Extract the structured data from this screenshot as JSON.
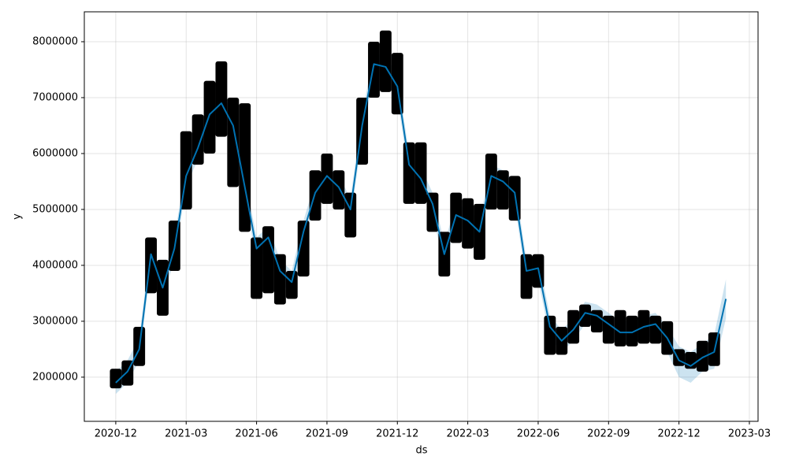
{
  "chart_data": {
    "type": "line",
    "xlabel": "ds",
    "ylabel": "y",
    "x": [
      0,
      0.5,
      1,
      1.5,
      2,
      2.5,
      3,
      3.5,
      4,
      4.5,
      5,
      5.5,
      6,
      6.5,
      7,
      7.5,
      8,
      8.5,
      9,
      9.5,
      10,
      10.5,
      11,
      11.5,
      12,
      12.5,
      13,
      13.5,
      14,
      14.5,
      15,
      15.5,
      16,
      16.5,
      17,
      17.5,
      18,
      18.5,
      19,
      19.5,
      20,
      20.5,
      21,
      21.5,
      22,
      22.5,
      23,
      23.5,
      24,
      24.5,
      25,
      25.5,
      26
    ],
    "series": [
      {
        "color": "#0072b2",
        "values": [
          1900000,
          2100000,
          2500000,
          4200000,
          3600000,
          4300000,
          5600000,
          6100000,
          6700000,
          6900000,
          6500000,
          5400000,
          4300000,
          4500000,
          3900000,
          3700000,
          4600000,
          5300000,
          5600000,
          5400000,
          5000000,
          6500000,
          7600000,
          7550000,
          7200000,
          5800000,
          5550000,
          5100000,
          4200000,
          4900000,
          4800000,
          4600000,
          5600000,
          5500000,
          5300000,
          3900000,
          3950000,
          2900000,
          2650000,
          2850000,
          3150000,
          3100000,
          2950000,
          2800000,
          2800000,
          2900000,
          2950000,
          2700000,
          2300000,
          2200000,
          2350000,
          2450000,
          3400000
        ]
      }
    ],
    "band": {
      "color": "#0072b2",
      "lower": [
        1700000,
        1900000,
        2300000,
        4000000,
        3400000,
        4100000,
        5400000,
        5900000,
        6500000,
        6700000,
        6300000,
        5200000,
        4100000,
        4300000,
        3700000,
        3500000,
        4400000,
        5100000,
        5400000,
        5200000,
        4800000,
        6300000,
        7400000,
        7350000,
        7000000,
        5600000,
        5350000,
        4900000,
        4000000,
        4700000,
        4600000,
        4400000,
        5400000,
        5300000,
        5100000,
        3700000,
        3750000,
        2700000,
        2450000,
        2650000,
        2950000,
        2900000,
        2750000,
        2600000,
        2600000,
        2700000,
        2750000,
        2450000,
        2000000,
        1900000,
        2100000,
        2150000,
        3050000
      ],
      "upper": [
        2100000,
        2300000,
        2700000,
        4400000,
        3800000,
        4500000,
        5800000,
        6300000,
        6900000,
        7100000,
        6700000,
        5600000,
        4500000,
        4700000,
        4100000,
        3900000,
        4800000,
        5500000,
        5800000,
        5600000,
        5200000,
        6700000,
        7800000,
        7750000,
        7400000,
        6000000,
        5750000,
        5300000,
        4400000,
        5100000,
        5000000,
        4800000,
        5800000,
        5700000,
        5500000,
        4100000,
        4150000,
        3100000,
        2850000,
        3050000,
        3350000,
        3300000,
        3150000,
        3000000,
        3000000,
        3100000,
        3150000,
        2900000,
        2550000,
        2450000,
        2600000,
        2750000,
        3750000
      ]
    },
    "observed": {
      "color": "#000000",
      "low": [
        1800000,
        1850000,
        2200000,
        3500000,
        3100000,
        3900000,
        5000000,
        5800000,
        6000000,
        6300000,
        5400000,
        4600000,
        3400000,
        3500000,
        3300000,
        3400000,
        3800000,
        4800000,
        5100000,
        5000000,
        4500000,
        5800000,
        7000000,
        7100000,
        6700000,
        5100000,
        5100000,
        4600000,
        3800000,
        4400000,
        4300000,
        4100000,
        5000000,
        5000000,
        4800000,
        3400000,
        3600000,
        2400000,
        2400000,
        2600000,
        2900000,
        2800000,
        2600000,
        2550000,
        2550000,
        2600000,
        2600000,
        2400000,
        2200000,
        2150000,
        2100000,
        2200000,
        null
      ],
      "high": [
        2150000,
        2300000,
        2900000,
        4500000,
        4100000,
        4800000,
        6400000,
        6700000,
        7300000,
        7650000,
        7000000,
        6900000,
        4500000,
        4700000,
        4200000,
        3900000,
        4800000,
        5700000,
        6000000,
        5700000,
        5300000,
        7000000,
        8000000,
        8200000,
        7800000,
        6200000,
        6200000,
        5300000,
        4600000,
        5300000,
        5200000,
        5100000,
        6000000,
        5700000,
        5600000,
        4200000,
        4200000,
        3100000,
        2900000,
        3200000,
        3300000,
        3200000,
        3100000,
        3200000,
        3100000,
        3200000,
        3100000,
        3000000,
        2500000,
        2450000,
        2650000,
        2800000,
        null
      ]
    },
    "xlim": [
      -1.34,
      27.37
    ],
    "xticks": [
      {
        "value": 0,
        "label": "2020-12"
      },
      {
        "value": 3,
        "label": "2021-03"
      },
      {
        "value": 6,
        "label": "2021-06"
      },
      {
        "value": 9,
        "label": "2021-09"
      },
      {
        "value": 12,
        "label": "2021-12"
      },
      {
        "value": 15,
        "label": "2022-03"
      },
      {
        "value": 18,
        "label": "2022-06"
      },
      {
        "value": 21,
        "label": "2022-09"
      },
      {
        "value": 24,
        "label": "2022-12"
      },
      {
        "value": 27,
        "label": "2023-03"
      }
    ],
    "ylim": [
      1210000,
      8535000
    ],
    "yticks": [
      2000000,
      3000000,
      4000000,
      5000000,
      6000000,
      7000000,
      8000000
    ],
    "grid": true
  }
}
